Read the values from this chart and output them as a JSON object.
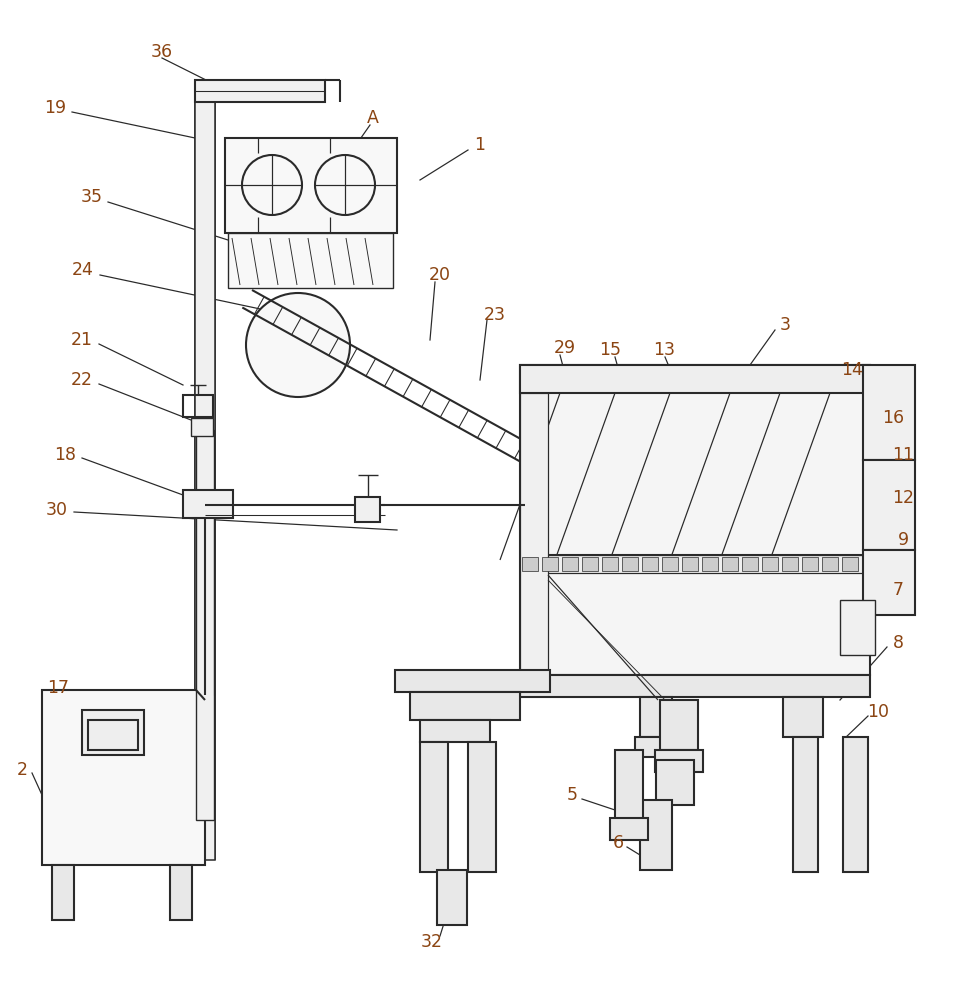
{
  "bg_color": "#ffffff",
  "line_color": "#2a2a2a",
  "line_width": 1.5,
  "label_color": "#8B4513",
  "label_fontsize": 12.5,
  "fig_width": 9.75,
  "fig_height": 10.0
}
